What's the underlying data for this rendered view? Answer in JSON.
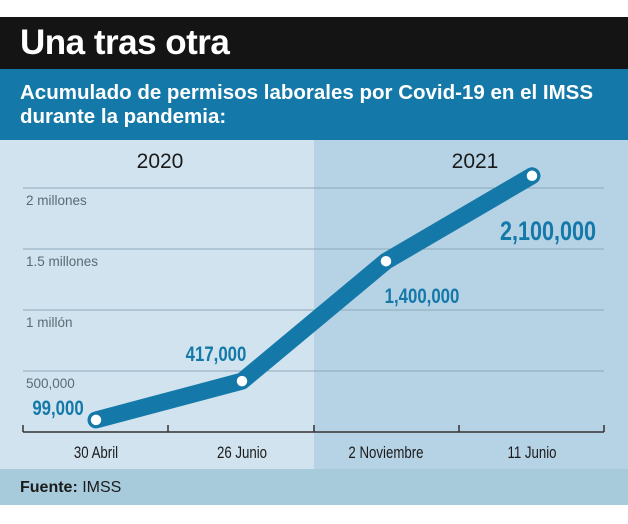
{
  "header": {
    "title": "Una tras otra"
  },
  "subtitle": "Acumulado de permisos laborales por Covid-19 en el IMSS durante la pandemia:",
  "footer": {
    "label": "Fuente:",
    "source": "IMSS"
  },
  "colors": {
    "line": "#1479a8",
    "label": "#1479a8",
    "panel_2020": "#d0e3ef",
    "panel_2021": "#b6d2e5"
  },
  "chart_data": {
    "type": "line",
    "title": "Una tras otra",
    "subtitle": "Acumulado de permisos laborales por Covid-19 en el IMSS durante la pandemia:",
    "categories": [
      "30 Abril",
      "26 Junio",
      "2 Noviembre",
      "11 Junio"
    ],
    "year_groups": [
      {
        "label": "2020",
        "categories": [
          "30 Abril",
          "26 Junio"
        ]
      },
      {
        "label": "2021",
        "categories": [
          "2 Noviembre",
          "11 Junio"
        ]
      }
    ],
    "values": [
      99000,
      417000,
      1400000,
      2100000
    ],
    "data_labels": [
      "99,000",
      "417,000",
      "1,400,000",
      "2,100,000"
    ],
    "yticks": [
      {
        "value": 500000,
        "label": "500,000"
      },
      {
        "value": 1000000,
        "label": "1 millón"
      },
      {
        "value": 1500000,
        "label": "1.5 millones"
      },
      {
        "value": 2000000,
        "label": "2 millones"
      }
    ],
    "ylim": [
      0,
      2200000
    ],
    "grid": true,
    "legend": "none"
  }
}
